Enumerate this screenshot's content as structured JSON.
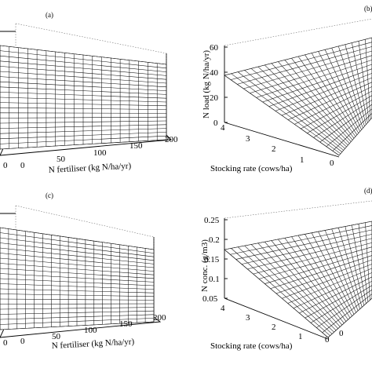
{
  "chart_data": [
    {
      "type": "surface",
      "panel_label": "(a)",
      "xlabel": "N fertiliser (kg N/ha/yr)",
      "x_ticks": [
        "0",
        "0",
        "50",
        "100",
        "150",
        "200"
      ]
    },
    {
      "type": "surface",
      "panel_label": "(b)",
      "xlabel": "Stocking rate (cows/ha)",
      "ylabel": "N load (kg N/ha/yr)",
      "x_ticks": [
        "4",
        "3",
        "2",
        "1",
        "0"
      ],
      "z_ticks": [
        "60",
        "40",
        "20",
        "0"
      ],
      "z_range": [
        0,
        60
      ]
    },
    {
      "type": "surface",
      "panel_label": "(c)",
      "xlabel": "N fertiliser (kg N/ha/yr)",
      "x_ticks": [
        "0",
        "0",
        "50",
        "100",
        "150",
        "200"
      ]
    },
    {
      "type": "surface",
      "panel_label": "(d)",
      "xlabel": "Stocking rate (cows/ha)",
      "ylabel": "N conc. (g/m3)",
      "x_ticks": [
        "4",
        "3",
        "2",
        "1",
        "0",
        "0"
      ],
      "z_ticks": [
        "0.25",
        "0.2",
        "0.15",
        "0.1",
        "0.05"
      ],
      "z_range": [
        0.05,
        0.25
      ]
    }
  ]
}
